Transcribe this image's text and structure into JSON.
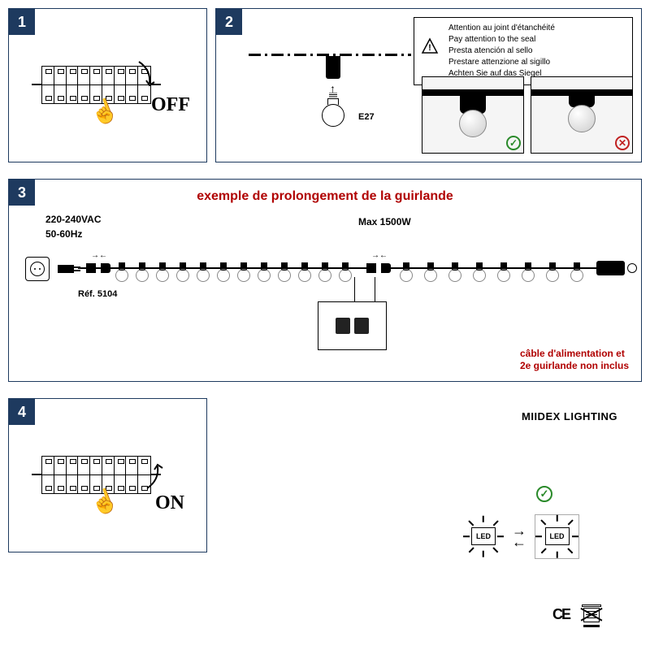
{
  "steps": {
    "s1": "1",
    "s2": "2",
    "s3": "3",
    "s4": "4"
  },
  "panel1": {
    "off": "OFF"
  },
  "panel2": {
    "e27": "E27",
    "warning": {
      "fr": "Attention au joint d'étanchéité",
      "en": "Pay attention to the seal",
      "es": "Presta atención al sello",
      "it": "Prestare attenzione al sigillo",
      "de": "Achten Sie auf das Siegel"
    },
    "ok": "✓",
    "no": "✕"
  },
  "panel3": {
    "title": "exemple de prolongement de la guirlande",
    "voltage": "220-240VAC",
    "freq": "50-60Hz",
    "max": "Max 1500W",
    "ref": "Réf. 5104",
    "note1": "câble d'alimentation et",
    "note2": "2e guirlande non inclus"
  },
  "panel4": {
    "on": "ON"
  },
  "brand": "MIIDEX LIGHTING",
  "led": "LED",
  "ce": "CE",
  "colors": {
    "navy": "#1e3a5f",
    "red": "#b00000",
    "green": "#2a8a2a",
    "redx": "#c02020"
  }
}
